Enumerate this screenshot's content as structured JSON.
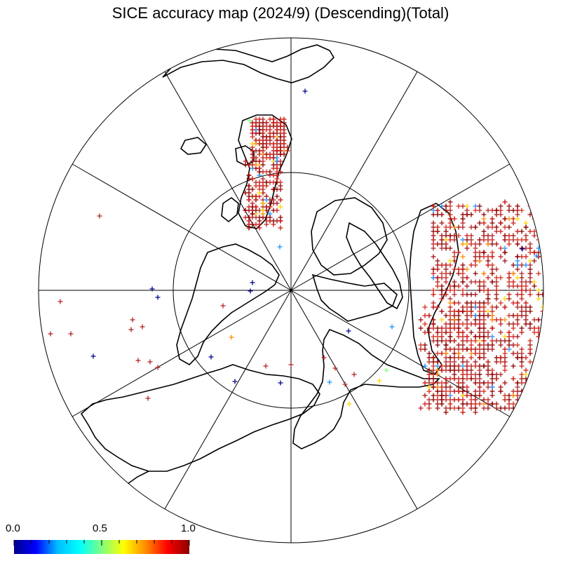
{
  "title": "SICE accuracy map (2024/9) (Descending)(Total)",
  "colorbar": {
    "ticks": [
      "0.0",
      "0.5",
      "1.0"
    ],
    "colors": [
      "#00008b",
      "#0000ff",
      "#00bfff",
      "#00ffff",
      "#7fff7f",
      "#ffff00",
      "#ff8c00",
      "#ff0000",
      "#8b0000"
    ]
  },
  "map": {
    "projection": "north polar stereographic",
    "meridian_lines": 12,
    "latitude_circle": true,
    "marker": "plus",
    "dominant_marker_color": "#b22222"
  }
}
